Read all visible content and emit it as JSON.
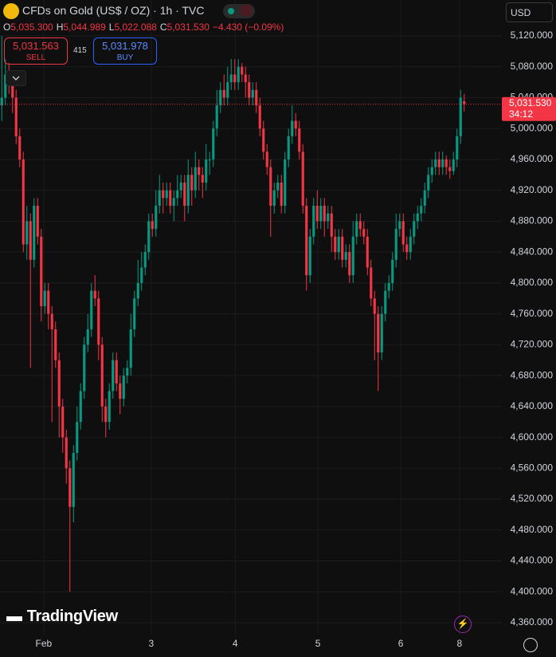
{
  "header": {
    "title": "CFDs on Gold (US$ / OZ) · 1h · TVC",
    "ohlc": [
      {
        "key": "O",
        "value": "5,035.300"
      },
      {
        "key": "H",
        "value": "5,044.989"
      },
      {
        "key": "L",
        "value": "5,022.088"
      },
      {
        "key": "C",
        "value": "5,031.530"
      }
    ],
    "change": "−4.430 (−0.09%)",
    "sell": {
      "price": "5,031.563",
      "label": "SELL"
    },
    "spread": "415",
    "buy": {
      "price": "5,031.978",
      "label": "BUY"
    },
    "currency": "USD",
    "logo": "TradingView"
  },
  "chart_data": {
    "type": "candlestick",
    "up_color": "#089981",
    "down_color": "#f23645",
    "grid": true,
    "open": [
      5030,
      5040,
      5070,
      5060,
      5040,
      4990,
      4960,
      4850,
      4880,
      4830,
      4900,
      4860,
      4770,
      4790,
      4760,
      4740,
      4700,
      4640,
      4600,
      4560,
      4510,
      4580,
      4620,
      4660,
      4720,
      4740,
      4790,
      4780,
      4720,
      4640,
      4620,
      4660,
      4700,
      4670,
      4650,
      4680,
      4690,
      4740,
      4780,
      4800,
      4820,
      4840,
      4880,
      4870,
      4900,
      4920,
      4910,
      4920,
      4900,
      4910,
      4920,
      4930,
      4900,
      4940,
      4920,
      4950,
      4940,
      4930,
      4960,
      4960,
      5000,
      5030,
      5050,
      5040,
      5060,
      5070,
      5060,
      5080,
      5070,
      5060,
      5040,
      5050,
      5030,
      5000,
      4970,
      4950,
      4900,
      4920,
      4930,
      4900,
      4960,
      4990,
      5010,
      5000,
      4970,
      4900,
      4810,
      4860,
      4900,
      4880,
      4900,
      4880,
      4890,
      4860,
      4840,
      4860,
      4830,
      4840,
      4810,
      4860,
      4880,
      4870,
      4860,
      4820,
      4780,
      4760,
      4710,
      4760,
      4790,
      4800,
      4830,
      4870,
      4880,
      4850,
      4840,
      4860,
      4880,
      4890,
      4900,
      4920,
      4940,
      4950,
      4960,
      4950,
      4960,
      4950,
      4945,
      4960,
      4990,
      5035.3
    ],
    "high": [
      5120,
      5090,
      5085,
      5070,
      5050,
      5000,
      4970,
      4900,
      4890,
      4910,
      4910,
      4870,
      4800,
      4800,
      4770,
      4750,
      4710,
      4650,
      4610,
      4570,
      4590,
      4640,
      4670,
      4730,
      4760,
      4800,
      4810,
      4790,
      4730,
      4650,
      4670,
      4710,
      4710,
      4680,
      4690,
      4700,
      4760,
      4790,
      4830,
      4840,
      4850,
      4890,
      4890,
      4920,
      4940,
      4930,
      4930,
      4930,
      4920,
      4940,
      4940,
      4940,
      4960,
      4950,
      4970,
      4960,
      4950,
      4980,
      4970,
      5010,
      5050,
      5060,
      5070,
      5080,
      5090,
      5090,
      5090,
      5085,
      5080,
      5070,
      5060,
      5060,
      5040,
      5010,
      4980,
      4960,
      4930,
      4940,
      4940,
      4970,
      5000,
      5030,
      5020,
      5010,
      4980,
      4910,
      4870,
      4910,
      4920,
      4910,
      4910,
      4900,
      4900,
      4870,
      4870,
      4870,
      4850,
      4850,
      4880,
      4890,
      4890,
      4880,
      4870,
      4830,
      4790,
      4770,
      4770,
      4800,
      4810,
      4840,
      4890,
      4890,
      4890,
      4860,
      4870,
      4890,
      4900,
      4910,
      4930,
      4950,
      4960,
      4970,
      4970,
      4970,
      4965,
      4960,
      4970,
      5000,
      5050,
      5044.989
    ],
    "low": [
      5010,
      5030,
      5045,
      5020,
      4980,
      4950,
      4840,
      4830,
      4690,
      4820,
      4850,
      4750,
      4760,
      4740,
      4620,
      4690,
      4600,
      4580,
      4540,
      4400,
      4490,
      4570,
      4610,
      4650,
      4710,
      4730,
      4770,
      4700,
      4620,
      4600,
      4610,
      4650,
      4660,
      4630,
      4640,
      4670,
      4680,
      4730,
      4770,
      4790,
      4810,
      4830,
      4860,
      4860,
      4890,
      4890,
      4900,
      4890,
      4880,
      4900,
      4910,
      4880,
      4890,
      4900,
      4910,
      4920,
      4910,
      4920,
      4940,
      4950,
      4990,
      5020,
      5030,
      5030,
      5050,
      5050,
      5050,
      5060,
      5040,
      5030,
      5030,
      5020,
      4990,
      4960,
      4940,
      4860,
      4890,
      4910,
      4890,
      4890,
      4950,
      4980,
      4990,
      4960,
      4890,
      4790,
      4800,
      4850,
      4870,
      4870,
      4860,
      4870,
      4840,
      4830,
      4830,
      4820,
      4820,
      4800,
      4800,
      4850,
      4860,
      4850,
      4810,
      4770,
      4700,
      4660,
      4700,
      4750,
      4780,
      4790,
      4820,
      4860,
      4840,
      4830,
      4830,
      4850,
      4870,
      4880,
      4890,
      4910,
      4930,
      4940,
      4940,
      4940,
      4940,
      4935,
      4940,
      4950,
      4980,
      5022.088
    ],
    "close": [
      5040,
      5070,
      5060,
      5040,
      4990,
      4960,
      4850,
      4880,
      4830,
      4900,
      4860,
      4770,
      4790,
      4760,
      4740,
      4700,
      4640,
      4600,
      4560,
      4510,
      4580,
      4620,
      4660,
      4720,
      4740,
      4790,
      4780,
      4720,
      4640,
      4620,
      4660,
      4700,
      4670,
      4650,
      4680,
      4690,
      4740,
      4780,
      4800,
      4820,
      4840,
      4880,
      4870,
      4900,
      4920,
      4910,
      4920,
      4900,
      4910,
      4920,
      4930,
      4900,
      4940,
      4920,
      4950,
      4940,
      4930,
      4960,
      4960,
      5000,
      5030,
      5050,
      5040,
      5060,
      5070,
      5060,
      5080,
      5070,
      5060,
      5040,
      5050,
      5030,
      5000,
      4970,
      4950,
      4900,
      4920,
      4930,
      4900,
      4960,
      4990,
      5010,
      5000,
      4970,
      4900,
      4810,
      4860,
      4900,
      4880,
      4900,
      4880,
      4890,
      4860,
      4840,
      4860,
      4830,
      4840,
      4810,
      4860,
      4880,
      4870,
      4860,
      4820,
      4780,
      4760,
      4710,
      4760,
      4790,
      4800,
      4830,
      4870,
      4880,
      4850,
      4840,
      4860,
      4880,
      4890,
      4900,
      4920,
      4940,
      4950,
      4960,
      4950,
      4960,
      4950,
      4945,
      4960,
      4990,
      5040,
      5031.53
    ],
    "xlim": [
      0,
      140
    ],
    "xticks": [
      {
        "value": 12.2,
        "label": "Feb"
      },
      {
        "value": 42.2,
        "label": "3"
      },
      {
        "value": 65.6,
        "label": "4"
      },
      {
        "value": 88.7,
        "label": "5"
      },
      {
        "value": 111.8,
        "label": "6"
      },
      {
        "value": 128.2,
        "label": "8"
      }
    ],
    "ylim": [
      4344.5,
      5166.5
    ],
    "yticks": [
      {
        "value": 5120,
        "label": "5,120.000"
      },
      {
        "value": 5080,
        "label": "5,080.000"
      },
      {
        "value": 5040,
        "label": "5,040.000"
      },
      {
        "value": 5000,
        "label": "5,000.000"
      },
      {
        "value": 4960,
        "label": "4,960.000"
      },
      {
        "value": 4920,
        "label": "4,920.000"
      },
      {
        "value": 4880,
        "label": "4,880.000"
      },
      {
        "value": 4840,
        "label": "4,840.000"
      },
      {
        "value": 4800,
        "label": "4,800.000"
      },
      {
        "value": 4760,
        "label": "4,760.000"
      },
      {
        "value": 4720,
        "label": "4,720.000"
      },
      {
        "value": 4680,
        "label": "4,680.000"
      },
      {
        "value": 4640,
        "label": "4,640.000"
      },
      {
        "value": 4600,
        "label": "4,600.000"
      },
      {
        "value": 4560,
        "label": "4,560.000"
      },
      {
        "value": 4520,
        "label": "4,520.000"
      },
      {
        "value": 4480,
        "label": "4,480.000"
      },
      {
        "value": 4440,
        "label": "4,440.000"
      },
      {
        "value": 4400,
        "label": "4,400.000"
      },
      {
        "value": 4360,
        "label": "4,360.000"
      }
    ],
    "last_price": 5031.53,
    "last_price_label": "5,031.530",
    "countdown": "34:12"
  }
}
